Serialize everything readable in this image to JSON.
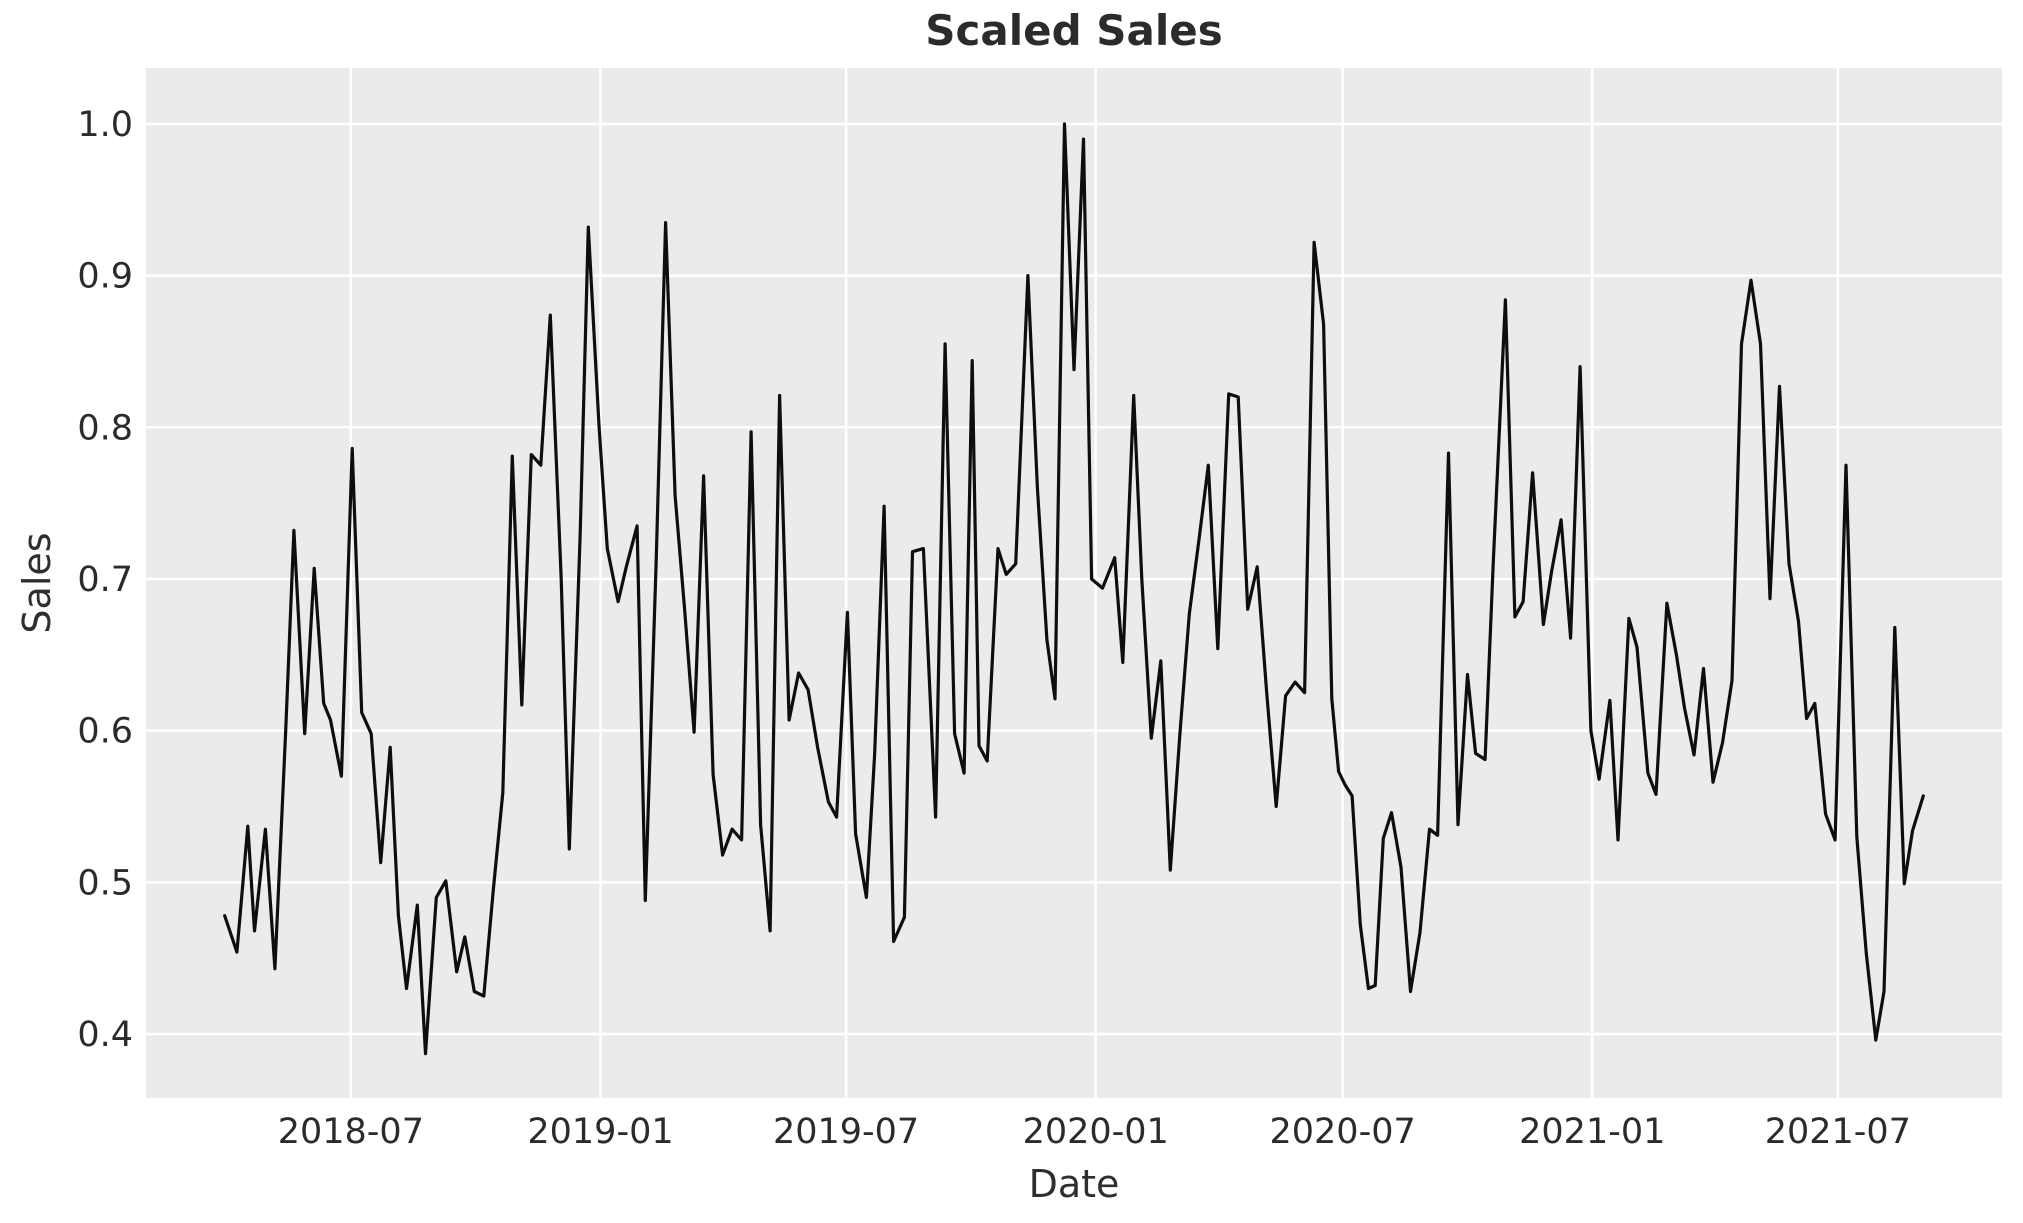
{
  "figure": {
    "title": "Scaled Sales"
  },
  "chart_data": {
    "type": "line",
    "title": "Scaled Sales",
    "xlabel": "Date",
    "ylabel": "Sales",
    "grid": true,
    "legend": false,
    "plot_background": "#ebebeb",
    "gridline_color": "#ffffff",
    "line_color": "#0e0e0e",
    "ylim": [
      0.3578,
      1.0369
    ],
    "xlim": [
      "2018-01-31",
      "2021-10-30"
    ],
    "yticks": {
      "labels": [
        "1.0",
        "0.9",
        "0.8",
        "0.7",
        "0.6",
        "0.5",
        "0.4"
      ],
      "values": [
        1.0,
        0.9,
        0.8,
        0.7,
        0.6,
        0.5,
        0.4
      ]
    },
    "xticks": {
      "labels": [
        "2018-07",
        "2019-01",
        "2019-07",
        "2020-01",
        "2020-07",
        "2021-01",
        "2021-07"
      ],
      "dates": [
        "2018-07-01",
        "2019-01-01",
        "2019-07-01",
        "2020-01-01",
        "2020-07-01",
        "2021-01-01",
        "2021-07-01"
      ]
    },
    "series": [
      {
        "name": "Sales",
        "dates": [
          "2018-03-30",
          "2018-04-08",
          "2018-04-16",
          "2018-04-21",
          "2018-04-29",
          "2018-05-06",
          "2018-05-14",
          "2018-05-20",
          "2018-05-28",
          "2018-06-04",
          "2018-06-11",
          "2018-06-16",
          "2018-06-24",
          "2018-07-02",
          "2018-07-09",
          "2018-07-16",
          "2018-07-23",
          "2018-07-30",
          "2018-08-05",
          "2018-08-11",
          "2018-08-19",
          "2018-08-25",
          "2018-09-02",
          "2018-09-09",
          "2018-09-17",
          "2018-09-23",
          "2018-09-30",
          "2018-10-07",
          "2018-10-14",
          "2018-10-21",
          "2018-10-28",
          "2018-11-04",
          "2018-11-11",
          "2018-11-18",
          "2018-11-25",
          "2018-12-03",
          "2018-12-09",
          "2018-12-17",
          "2018-12-23",
          "2018-12-31",
          "2019-01-06",
          "2019-01-14",
          "2019-01-20",
          "2019-01-28",
          "2019-02-03",
          "2019-02-11",
          "2019-02-18",
          "2019-02-25",
          "2019-03-04",
          "2019-03-11",
          "2019-03-18",
          "2019-03-25",
          "2019-04-01",
          "2019-04-08",
          "2019-04-15",
          "2019-04-22",
          "2019-04-29",
          "2019-05-06",
          "2019-05-13",
          "2019-05-20",
          "2019-05-27",
          "2019-06-03",
          "2019-06-10",
          "2019-06-18",
          "2019-06-24",
          "2019-07-02",
          "2019-07-08",
          "2019-07-16",
          "2019-07-22",
          "2019-07-29",
          "2019-08-05",
          "2019-08-13",
          "2019-08-19",
          "2019-08-27",
          "2019-09-05",
          "2019-09-12",
          "2019-09-19",
          "2019-09-26",
          "2019-10-02",
          "2019-10-07",
          "2019-10-13",
          "2019-10-21",
          "2019-10-27",
          "2019-11-03",
          "2019-11-12",
          "2019-11-19",
          "2019-11-26",
          "2019-12-02",
          "2019-12-09",
          "2019-12-16",
          "2019-12-23",
          "2019-12-29",
          "2020-01-06",
          "2020-01-15",
          "2020-01-21",
          "2020-01-29",
          "2020-02-04",
          "2020-02-11",
          "2020-02-18",
          "2020-02-25",
          "2020-03-03",
          "2020-03-10",
          "2020-03-17",
          "2020-03-24",
          "2020-03-31",
          "2020-04-08",
          "2020-04-15",
          "2020-04-22",
          "2020-04-29",
          "2020-05-06",
          "2020-05-13",
          "2020-05-20",
          "2020-05-27",
          "2020-06-03",
          "2020-06-10",
          "2020-06-17",
          "2020-06-23",
          "2020-06-28",
          "2020-07-03",
          "2020-07-08",
          "2020-07-14",
          "2020-07-20",
          "2020-07-25",
          "2020-07-31",
          "2020-08-06",
          "2020-08-13",
          "2020-08-20",
          "2020-08-27",
          "2020-09-03",
          "2020-09-09",
          "2020-09-17",
          "2020-09-24",
          "2020-10-01",
          "2020-10-07",
          "2020-10-14",
          "2020-10-20",
          "2020-10-29",
          "2020-11-05",
          "2020-11-11",
          "2020-11-18",
          "2020-11-26",
          "2020-12-02",
          "2020-12-09",
          "2020-12-16",
          "2020-12-23",
          "2020-12-31",
          "2021-01-06",
          "2021-01-14",
          "2021-01-20",
          "2021-01-28",
          "2021-02-03",
          "2021-02-11",
          "2021-02-17",
          "2021-02-25",
          "2021-03-04",
          "2021-03-10",
          "2021-03-17",
          "2021-03-24",
          "2021-03-31",
          "2021-04-07",
          "2021-04-14",
          "2021-04-21",
          "2021-04-28",
          "2021-05-05",
          "2021-05-12",
          "2021-05-19",
          "2021-05-26",
          "2021-06-02",
          "2021-06-08",
          "2021-06-14",
          "2021-06-22",
          "2021-06-29",
          "2021-07-07",
          "2021-07-15",
          "2021-07-22",
          "2021-07-29",
          "2021-08-04",
          "2021-08-12",
          "2021-08-19",
          "2021-08-25",
          "2021-09-02"
        ],
        "values": [
          0.478,
          0.454,
          0.537,
          0.468,
          0.535,
          0.443,
          0.6,
          0.732,
          0.598,
          0.707,
          0.618,
          0.607,
          0.57,
          0.786,
          0.612,
          0.598,
          0.513,
          0.589,
          0.478,
          0.43,
          0.485,
          0.387,
          0.49,
          0.501,
          0.441,
          0.464,
          0.428,
          0.425,
          0.495,
          0.559,
          0.781,
          0.617,
          0.782,
          0.775,
          0.874,
          0.7,
          0.522,
          0.73,
          0.932,
          0.8,
          0.72,
          0.685,
          0.708,
          0.735,
          0.488,
          0.71,
          0.935,
          0.755,
          0.68,
          0.599,
          0.768,
          0.571,
          0.518,
          0.535,
          0.528,
          0.797,
          0.538,
          0.468,
          0.821,
          0.607,
          0.638,
          0.627,
          0.589,
          0.553,
          0.543,
          0.678,
          0.532,
          0.49,
          0.584,
          0.748,
          0.461,
          0.477,
          0.718,
          0.72,
          0.543,
          0.855,
          0.598,
          0.572,
          0.844,
          0.59,
          0.58,
          0.72,
          0.703,
          0.71,
          0.9,
          0.76,
          0.66,
          0.621,
          1.0,
          0.838,
          0.99,
          0.7,
          0.694,
          0.714,
          0.645,
          0.821,
          0.7,
          0.595,
          0.646,
          0.508,
          0.597,
          0.677,
          0.725,
          0.775,
          0.654,
          0.822,
          0.82,
          0.68,
          0.708,
          0.625,
          0.55,
          0.623,
          0.632,
          0.625,
          0.922,
          0.868,
          0.621,
          0.573,
          0.564,
          0.557,
          0.472,
          0.43,
          0.432,
          0.529,
          0.546,
          0.51,
          0.428,
          0.467,
          0.535,
          0.531,
          0.783,
          0.538,
          0.637,
          0.585,
          0.581,
          0.71,
          0.884,
          0.675,
          0.685,
          0.77,
          0.67,
          0.705,
          0.739,
          0.661,
          0.84,
          0.6,
          0.568,
          0.62,
          0.528,
          0.674,
          0.655,
          0.572,
          0.558,
          0.684,
          0.65,
          0.615,
          0.584,
          0.641,
          0.566,
          0.592,
          0.633,
          0.855,
          0.897,
          0.855,
          0.687,
          0.827,
          0.71,
          0.672,
          0.608,
          0.618,
          0.545,
          0.528,
          0.775,
          0.53,
          0.453,
          0.396,
          0.428,
          0.668,
          0.499,
          0.534,
          0.557
        ]
      }
    ]
  }
}
